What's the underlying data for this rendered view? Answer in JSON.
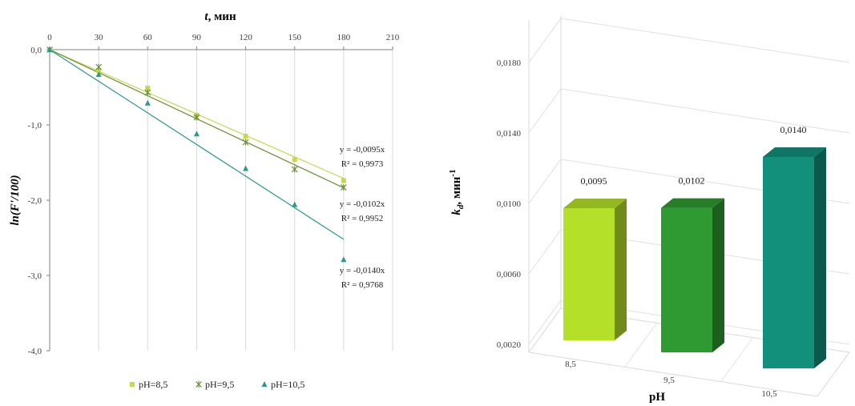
{
  "chart_data": [
    {
      "type": "scatter",
      "xlabel_var": "t",
      "xlabel_unit": ", мин",
      "ylabel": "ln(F'/100)",
      "xlim": [
        0,
        210
      ],
      "ylim": [
        -4.0,
        0.0
      ],
      "x_ticks": [
        "0",
        "30",
        "60",
        "90",
        "120",
        "150",
        "180",
        "210"
      ],
      "y_ticks": [
        "0,0",
        "-1,0",
        "-2,0",
        "-3,0",
        "-4,0"
      ],
      "colors": {
        "pH85": "#c8d84a",
        "pH95": "#6b8f3a",
        "pH105": "#2a9a8c"
      },
      "series": [
        {
          "name": "pH=8,5",
          "x": [
            0,
            30,
            60,
            90,
            120,
            150,
            180
          ],
          "y": [
            0,
            -0.28,
            -0.51,
            -0.87,
            -1.15,
            -1.46,
            -1.74
          ],
          "slope": -0.0095,
          "equation": "y = -0,0095x",
          "r2": "R² = 0,9973"
        },
        {
          "name": "pH=9,5",
          "x": [
            0,
            30,
            60,
            90,
            120,
            150,
            180
          ],
          "y": [
            0,
            -0.23,
            -0.57,
            -0.9,
            -1.23,
            -1.59,
            -1.83
          ],
          "slope": -0.0102,
          "equation": "y = -0,0102x",
          "r2": "R² = 0,9952"
        },
        {
          "name": "pH=10,5",
          "x": [
            0,
            30,
            60,
            90,
            120,
            150,
            180
          ],
          "y": [
            0,
            -0.33,
            -0.71,
            -1.12,
            -1.58,
            -2.06,
            -2.79
          ],
          "slope": -0.014,
          "equation": "y = -0,0140x",
          "r2": "R² = 0,9768"
        }
      ]
    },
    {
      "type": "bar",
      "xlabel": "pH",
      "ylabel_var": "k",
      "ylabel_sub": "d",
      "ylabel_unit": ", мин",
      "ylabel_sup": "-1",
      "ylim": [
        0.002,
        0.02
      ],
      "y_ticks": [
        "0,0020",
        "0,0060",
        "0,0100",
        "0,0140",
        "0,0180"
      ],
      "categories": [
        "8,5",
        "9,5",
        "10,5"
      ],
      "values": [
        0.0095,
        0.0102,
        0.014
      ],
      "value_labels": [
        "0,0095",
        "0,0102",
        "0,0140"
      ],
      "colors": [
        "#b5e02a",
        "#2f9a32",
        "#12907c"
      ]
    }
  ]
}
